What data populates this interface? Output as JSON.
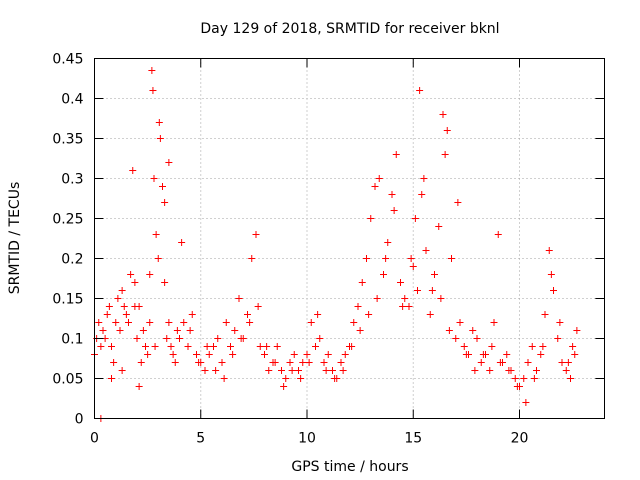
{
  "chart_data": {
    "type": "scatter",
    "title": "Day 129 of 2018, SRMTID for receiver bknl",
    "xlabel": "GPS time / hours",
    "ylabel": "SRMTID / TECUs",
    "xlim": [
      0,
      24
    ],
    "ylim": [
      0,
      0.45
    ],
    "xticks": [
      0,
      5,
      10,
      15,
      20
    ],
    "xtick_labels": [
      "0",
      "5",
      "10",
      "15",
      "20"
    ],
    "yticks": [
      0,
      0.05,
      0.1,
      0.15,
      0.2,
      0.25,
      0.3,
      0.35,
      0.4,
      0.45
    ],
    "ytick_labels": [
      "0",
      "0.05",
      "0.1",
      "0.15",
      "0.2",
      "0.25",
      "0.3",
      "0.35",
      "0.4",
      "0.45"
    ],
    "grid": true,
    "marker": "plus",
    "color": "#ff0000",
    "series": [
      {
        "name": "SRMTID",
        "x": [
          0.0,
          0.1,
          0.2,
          0.3,
          0.4,
          0.5,
          0.6,
          0.7,
          0.8,
          0.9,
          1.0,
          1.1,
          1.2,
          1.3,
          1.4,
          1.5,
          1.6,
          1.7,
          1.8,
          1.9,
          2.0,
          2.1,
          2.2,
          2.3,
          2.4,
          2.5,
          2.6,
          2.7,
          2.75,
          2.8,
          2.9,
          3.0,
          3.1,
          3.2,
          3.3,
          3.4,
          3.5,
          3.6,
          3.7,
          3.8,
          3.9,
          4.0,
          4.2,
          4.4,
          4.6,
          4.8,
          5.0,
          5.2,
          5.4,
          5.6,
          5.8,
          6.0,
          6.2,
          6.4,
          6.6,
          6.8,
          7.0,
          7.2,
          7.4,
          7.6,
          7.8,
          8.0,
          8.2,
          8.4,
          8.6,
          8.8,
          9.0,
          9.2,
          9.4,
          9.6,
          9.8,
          10.0,
          10.2,
          10.4,
          10.6,
          10.8,
          11.0,
          11.2,
          11.4,
          11.6,
          11.8,
          12.0,
          12.2,
          12.4,
          12.6,
          12.8,
          13.0,
          13.2,
          13.4,
          13.6,
          13.8,
          14.0,
          14.2,
          14.4,
          14.6,
          14.8,
          15.0,
          15.2,
          15.3,
          15.4,
          15.6,
          15.8,
          16.0,
          16.2,
          16.4,
          16.5,
          16.6,
          16.8,
          17.0,
          17.2,
          17.4,
          17.6,
          17.8,
          18.0,
          18.2,
          18.4,
          18.6,
          18.8,
          19.0,
          19.2,
          19.4,
          19.6,
          19.8,
          20.0,
          20.2,
          20.4,
          20.6,
          20.8,
          21.0,
          21.2,
          21.4,
          21.6,
          21.8,
          22.0,
          22.2,
          22.4,
          22.6,
          22.7,
          1.9,
          0.3,
          0.8,
          1.3,
          2.1,
          2.6,
          2.85,
          3.05,
          3.3,
          3.5,
          4.1,
          4.5,
          4.9,
          5.3,
          5.7,
          6.1,
          6.5,
          6.9,
          7.3,
          7.7,
          8.1,
          8.5,
          8.9,
          9.3,
          9.7,
          10.1,
          10.5,
          10.9,
          11.3,
          11.7,
          12.1,
          12.5,
          12.9,
          13.3,
          13.7,
          14.1,
          14.5,
          14.9,
          15.1,
          15.5,
          15.9,
          16.3,
          16.7,
          17.1,
          17.5,
          17.9,
          18.3,
          18.7,
          19.1,
          19.5,
          19.9,
          20.3,
          20.7,
          21.1,
          21.5,
          21.9,
          22.3,
          22.5
        ],
        "y": [
          0.08,
          0.1,
          0.12,
          0.09,
          0.11,
          0.1,
          0.13,
          0.14,
          0.09,
          0.07,
          0.12,
          0.15,
          0.11,
          0.16,
          0.14,
          0.13,
          0.12,
          0.18,
          0.31,
          0.17,
          0.1,
          0.14,
          0.07,
          0.11,
          0.09,
          0.08,
          0.12,
          0.435,
          0.41,
          0.3,
          0.23,
          0.2,
          0.35,
          0.29,
          0.17,
          0.1,
          0.12,
          0.09,
          0.08,
          0.07,
          0.11,
          0.1,
          0.12,
          0.09,
          0.13,
          0.08,
          0.07,
          0.06,
          0.08,
          0.09,
          0.1,
          0.07,
          0.12,
          0.09,
          0.11,
          0.15,
          0.1,
          0.13,
          0.2,
          0.23,
          0.09,
          0.08,
          0.06,
          0.07,
          0.09,
          0.06,
          0.05,
          0.07,
          0.08,
          0.06,
          0.07,
          0.08,
          0.12,
          0.09,
          0.1,
          0.07,
          0.08,
          0.06,
          0.05,
          0.07,
          0.08,
          0.09,
          0.12,
          0.14,
          0.17,
          0.2,
          0.25,
          0.29,
          0.3,
          0.18,
          0.22,
          0.28,
          0.33,
          0.17,
          0.15,
          0.14,
          0.19,
          0.16,
          0.41,
          0.28,
          0.21,
          0.13,
          0.18,
          0.24,
          0.38,
          0.33,
          0.36,
          0.2,
          0.1,
          0.12,
          0.09,
          0.08,
          0.11,
          0.1,
          0.07,
          0.08,
          0.06,
          0.12,
          0.23,
          0.07,
          0.08,
          0.06,
          0.05,
          0.04,
          0.05,
          0.07,
          0.09,
          0.06,
          0.08,
          0.13,
          0.21,
          0.16,
          0.1,
          0.07,
          0.06,
          0.05,
          0.08,
          0.11,
          0.14,
          0.0,
          0.05,
          0.06,
          0.04,
          0.18,
          0.09,
          0.37,
          0.27,
          0.32,
          0.22,
          0.11,
          0.07,
          0.09,
          0.06,
          0.05,
          0.08,
          0.1,
          0.12,
          0.14,
          0.09,
          0.07,
          0.04,
          0.06,
          0.05,
          0.07,
          0.13,
          0.06,
          0.05,
          0.06,
          0.09,
          0.11,
          0.13,
          0.15,
          0.2,
          0.26,
          0.14,
          0.2,
          0.25,
          0.3,
          0.16,
          0.15,
          0.11,
          0.27,
          0.08,
          0.06,
          0.08,
          0.09,
          0.07,
          0.06,
          0.04,
          0.02,
          0.05,
          0.09,
          0.18,
          0.12,
          0.07,
          0.09
        ]
      }
    ]
  }
}
